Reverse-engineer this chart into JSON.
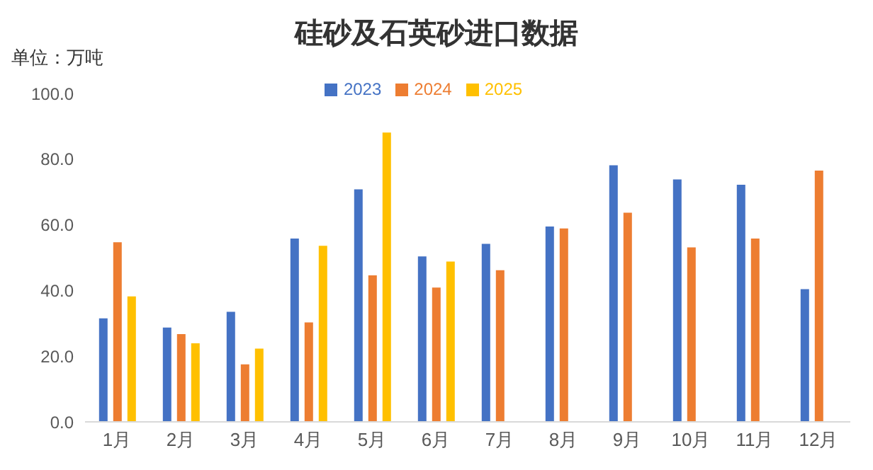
{
  "chart_data": {
    "type": "bar",
    "title": "硅砂及石英砂进口数据",
    "annotations": [
      "单位：万吨"
    ],
    "categories": [
      "1月",
      "2月",
      "3月",
      "4月",
      "5月",
      "6月",
      "7月",
      "8月",
      "9月",
      "10月",
      "11月",
      "12月"
    ],
    "series": [
      {
        "name": "2023",
        "color": "#4472c4",
        "values": [
          31.5,
          28.7,
          33.5,
          55.8,
          70.8,
          50.4,
          54.2,
          59.5,
          78.1,
          73.8,
          72.2,
          40.4
        ]
      },
      {
        "name": "2024",
        "color": "#ed7d31",
        "values": [
          54.7,
          26.7,
          17.5,
          30.3,
          44.6,
          40.9,
          46.2,
          58.9,
          63.7,
          53.1,
          55.8,
          76.5
        ]
      },
      {
        "name": "2025",
        "color": "#ffc000",
        "values": [
          38.2,
          23.9,
          22.3,
          53.6,
          88.1,
          48.8,
          null,
          null,
          null,
          null,
          null,
          null
        ]
      }
    ],
    "ylim": [
      0,
      100
    ],
    "yticks": [
      {
        "value": 0,
        "label": "0.0"
      },
      {
        "value": 20,
        "label": "20.0"
      },
      {
        "value": 40,
        "label": "40.0"
      },
      {
        "value": 60,
        "label": "60.0"
      },
      {
        "value": 80,
        "label": "80.0"
      },
      {
        "value": 100,
        "label": "100.0"
      }
    ],
    "grid": false,
    "legend": "top"
  }
}
